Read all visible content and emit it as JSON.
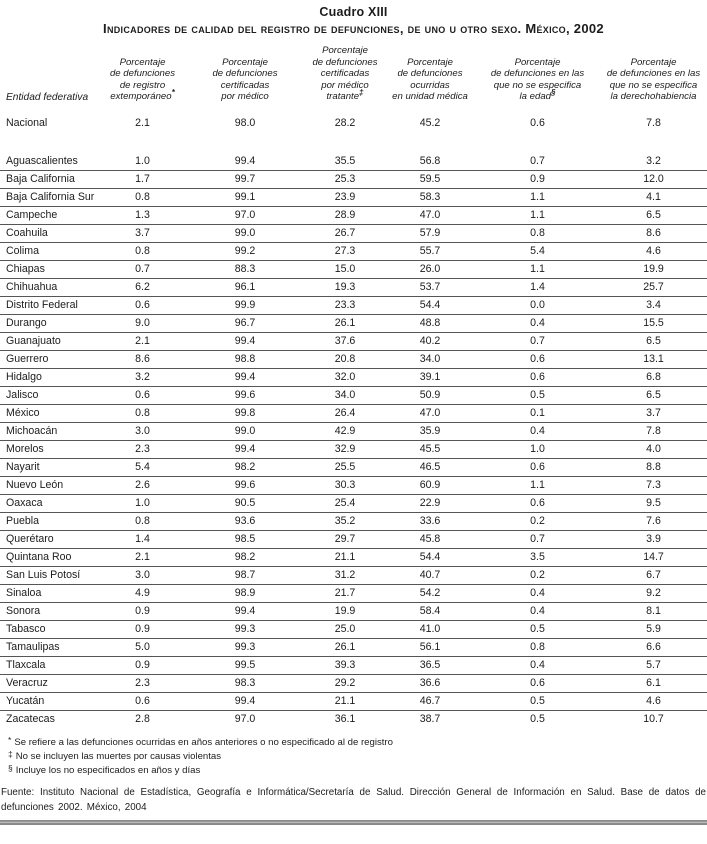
{
  "table": {
    "title": "Cuadro XIII",
    "subtitle": "Indicadores de calidad del registro de defunciones, de uno u otro sexo. México, 2002",
    "row_header": "Entidad federativa",
    "columns": [
      {
        "lines": [
          "Porcentaje",
          "de defunciones",
          "de registro",
          "extemporáneo*"
        ]
      },
      {
        "lines": [
          "Porcentaje",
          "de defunciones",
          "certificadas",
          "por médico"
        ]
      },
      {
        "lines": [
          "Porcentaje",
          "de defunciones",
          "certificadas",
          "por médico tratante‡"
        ]
      },
      {
        "lines": [
          "Porcentaje",
          "de defunciones",
          "ocurridas",
          "en unidad médica"
        ]
      },
      {
        "lines": [
          "Porcentaje",
          "de defunciones en las",
          "que no se especifica",
          "la edad§"
        ]
      },
      {
        "lines": [
          "Porcentaje",
          "de defunciones en las",
          "que no se especifica",
          "la derechohabiencia"
        ]
      }
    ],
    "national": {
      "name": "Nacional",
      "values": [
        "2.1",
        "98.0",
        "28.2",
        "45.2",
        "0.6",
        "7.8"
      ]
    },
    "rows": [
      {
        "name": "Aguascalientes",
        "values": [
          "1.0",
          "99.4",
          "35.5",
          "56.8",
          "0.7",
          "3.2"
        ]
      },
      {
        "name": "Baja California",
        "values": [
          "1.7",
          "99.7",
          "25.3",
          "59.5",
          "0.9",
          "12.0"
        ]
      },
      {
        "name": "Baja California Sur",
        "values": [
          "0.8",
          "99.1",
          "23.9",
          "58.3",
          "1.1",
          "4.1"
        ]
      },
      {
        "name": "Campeche",
        "values": [
          "1.3",
          "97.0",
          "28.9",
          "47.0",
          "1.1",
          "6.5"
        ]
      },
      {
        "name": "Coahuila",
        "values": [
          "3.7",
          "99.0",
          "26.7",
          "57.9",
          "0.8",
          "8.6"
        ]
      },
      {
        "name": "Colima",
        "values": [
          "0.8",
          "99.2",
          "27.3",
          "55.7",
          "5.4",
          "4.6"
        ]
      },
      {
        "name": "Chiapas",
        "values": [
          "0.7",
          "88.3",
          "15.0",
          "26.0",
          "1.1",
          "19.9"
        ]
      },
      {
        "name": "Chihuahua",
        "values": [
          "6.2",
          "96.1",
          "19.3",
          "53.7",
          "1.4",
          "25.7"
        ]
      },
      {
        "name": "Distrito Federal",
        "values": [
          "0.6",
          "99.9",
          "23.3",
          "54.4",
          "0.0",
          "3.4"
        ]
      },
      {
        "name": "Durango",
        "values": [
          "9.0",
          "96.7",
          "26.1",
          "48.8",
          "0.4",
          "15.5"
        ]
      },
      {
        "name": "Guanajuato",
        "values": [
          "2.1",
          "99.4",
          "37.6",
          "40.2",
          "0.7",
          "6.5"
        ]
      },
      {
        "name": "Guerrero",
        "values": [
          "8.6",
          "98.8",
          "20.8",
          "34.0",
          "0.6",
          "13.1"
        ]
      },
      {
        "name": "Hidalgo",
        "values": [
          "3.2",
          "99.4",
          "32.0",
          "39.1",
          "0.6",
          "6.8"
        ]
      },
      {
        "name": "Jalisco",
        "values": [
          "0.6",
          "99.6",
          "34.0",
          "50.9",
          "0.5",
          "6.5"
        ]
      },
      {
        "name": "México",
        "values": [
          "0.8",
          "99.8",
          "26.4",
          "47.0",
          "0.1",
          "3.7"
        ]
      },
      {
        "name": "Michoacán",
        "values": [
          "3.0",
          "99.0",
          "42.9",
          "35.9",
          "0.4",
          "7.8"
        ]
      },
      {
        "name": "Morelos",
        "values": [
          "2.3",
          "99.4",
          "32.9",
          "45.5",
          "1.0",
          "4.0"
        ]
      },
      {
        "name": "Nayarit",
        "values": [
          "5.4",
          "98.2",
          "25.5",
          "46.5",
          "0.6",
          "8.8"
        ]
      },
      {
        "name": "Nuevo León",
        "values": [
          "2.6",
          "99.6",
          "30.3",
          "60.9",
          "1.1",
          "7.3"
        ]
      },
      {
        "name": "Oaxaca",
        "values": [
          "1.0",
          "90.5",
          "25.4",
          "22.9",
          "0.6",
          "9.5"
        ]
      },
      {
        "name": "Puebla",
        "values": [
          "0.8",
          "93.6",
          "35.2",
          "33.6",
          "0.2",
          "7.6"
        ]
      },
      {
        "name": "Querétaro",
        "values": [
          "1.4",
          "98.5",
          "29.7",
          "45.8",
          "0.7",
          "3.9"
        ]
      },
      {
        "name": "Quintana Roo",
        "values": [
          "2.1",
          "98.2",
          "21.1",
          "54.4",
          "3.5",
          "14.7"
        ]
      },
      {
        "name": "San Luis Potosí",
        "values": [
          "3.0",
          "98.7",
          "31.2",
          "40.7",
          "0.2",
          "6.7"
        ]
      },
      {
        "name": "Sinaloa",
        "values": [
          "4.9",
          "98.9",
          "21.7",
          "54.2",
          "0.4",
          "9.2"
        ]
      },
      {
        "name": "Sonora",
        "values": [
          "0.9",
          "99.4",
          "19.9",
          "58.4",
          "0.4",
          "8.1"
        ]
      },
      {
        "name": "Tabasco",
        "values": [
          "0.9",
          "99.3",
          "25.0",
          "41.0",
          "0.5",
          "5.9"
        ]
      },
      {
        "name": "Tamaulipas",
        "values": [
          "5.0",
          "99.3",
          "26.1",
          "56.1",
          "0.8",
          "6.6"
        ]
      },
      {
        "name": "Tlaxcala",
        "values": [
          "0.9",
          "99.5",
          "39.3",
          "36.5",
          "0.4",
          "5.7"
        ]
      },
      {
        "name": "Veracruz",
        "values": [
          "2.3",
          "98.3",
          "29.2",
          "36.6",
          "0.6",
          "6.1"
        ]
      },
      {
        "name": "Yucatán",
        "values": [
          "0.6",
          "99.4",
          "21.1",
          "46.7",
          "0.5",
          "4.6"
        ]
      },
      {
        "name": "Zacatecas",
        "values": [
          "2.8",
          "97.0",
          "36.1",
          "38.7",
          "0.5",
          "10.7"
        ]
      }
    ]
  },
  "footnotes": [
    {
      "symbol": "*",
      "text": "Se refiere a las defunciones ocurridas en años anteriores o no especificado al de registro"
    },
    {
      "symbol": "‡",
      "text": "No se incluyen las muertes por causas violentas"
    },
    {
      "symbol": "§",
      "text": "Incluye los no especificados en años y días"
    }
  ],
  "source": "Fuente: Instituto Nacional de Estadística, Geografía e Informática/Secretaría de Salud. Dirección General de Información en Salud. Base de datos de defunciones 2002. México, 2004"
}
